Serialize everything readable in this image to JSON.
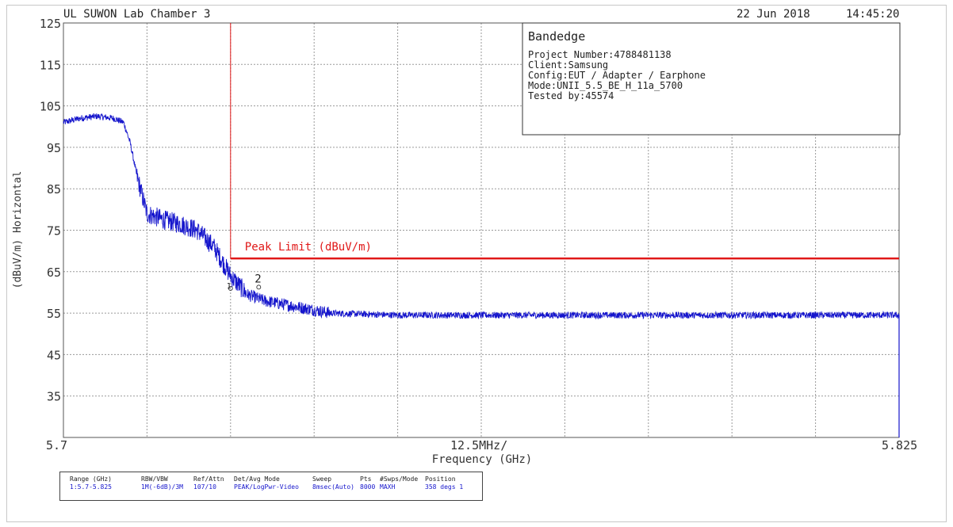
{
  "header": {
    "location": "UL SUWON Lab Chamber 3",
    "date": "22 Jun 2018",
    "time": "14:45:20"
  },
  "info_box": {
    "title": "Bandedge",
    "lines": [
      "Project Number:4788481138",
      "Client:Samsung",
      "Config:EUT / Adapter / Earphone",
      "Mode:UNII_5.5_BE_H_11a_5700",
      "Tested by:45574"
    ]
  },
  "settings": [
    {
      "header": "Range (GHz)",
      "value": "1:5.7-5.825"
    },
    {
      "header": "RBW/VBW",
      "value": "1M(-6dB)/3M"
    },
    {
      "header": "Ref/Attn",
      "value": "107/10"
    },
    {
      "header": "Det/Avg Mode",
      "value": "PEAK/LogPwr-Video"
    },
    {
      "header": "Sweep",
      "value": "8msec(Auto)"
    },
    {
      "header": "Pts",
      "value": "8000"
    },
    {
      "header": "#Swps/Mode",
      "value": "MAXH"
    },
    {
      "header": "Position",
      "value": "358 degs 1"
    }
  ],
  "colors": {
    "trace": "#1515cc",
    "limit": "#e01818",
    "grid": "#9a9a9a",
    "axis_text": "#333333"
  },
  "chart_data": {
    "type": "line",
    "title": "",
    "xlabel": "Frequency (GHz)",
    "ylabel": "(dBuV/m) Horizontal",
    "xlim": [
      5.7,
      5.825
    ],
    "ylim": [
      25,
      125
    ],
    "x_tick_labels": {
      "left": "5.7",
      "center": "12.5MHz/",
      "right": "5.825"
    },
    "y_ticks": [
      125,
      115,
      105,
      95,
      85,
      75,
      65,
      55,
      45,
      35
    ],
    "grid": true,
    "series": [
      {
        "x": [
          5.7,
          5.7025,
          5.705,
          5.7075,
          5.709,
          5.71,
          5.711,
          5.7125,
          5.715,
          5.7175,
          5.72,
          5.7225,
          5.725,
          5.7275,
          5.73,
          5.735,
          5.74,
          5.75,
          5.76,
          5.775,
          5.8,
          5.825
        ],
        "y": [
          101,
          102,
          102.5,
          102,
          101,
          96,
          88,
          79,
          77.5,
          76.5,
          75,
          71,
          64,
          59.5,
          58,
          56.5,
          55,
          54.5,
          54.5,
          54.5,
          54.5,
          54.5
        ]
      },
      {
        "name": "Peak Limit (dBuV/m)",
        "x": [
          5.725,
          5.825
        ],
        "y": [
          68.2,
          68.2
        ]
      }
    ],
    "vertical_lines": [
      5.725
    ],
    "markers": [
      {
        "label": "1",
        "x": 5.725,
        "y": 60.2
      },
      {
        "label": "2",
        "x": 5.7285,
        "y": 60.5
      }
    ]
  }
}
